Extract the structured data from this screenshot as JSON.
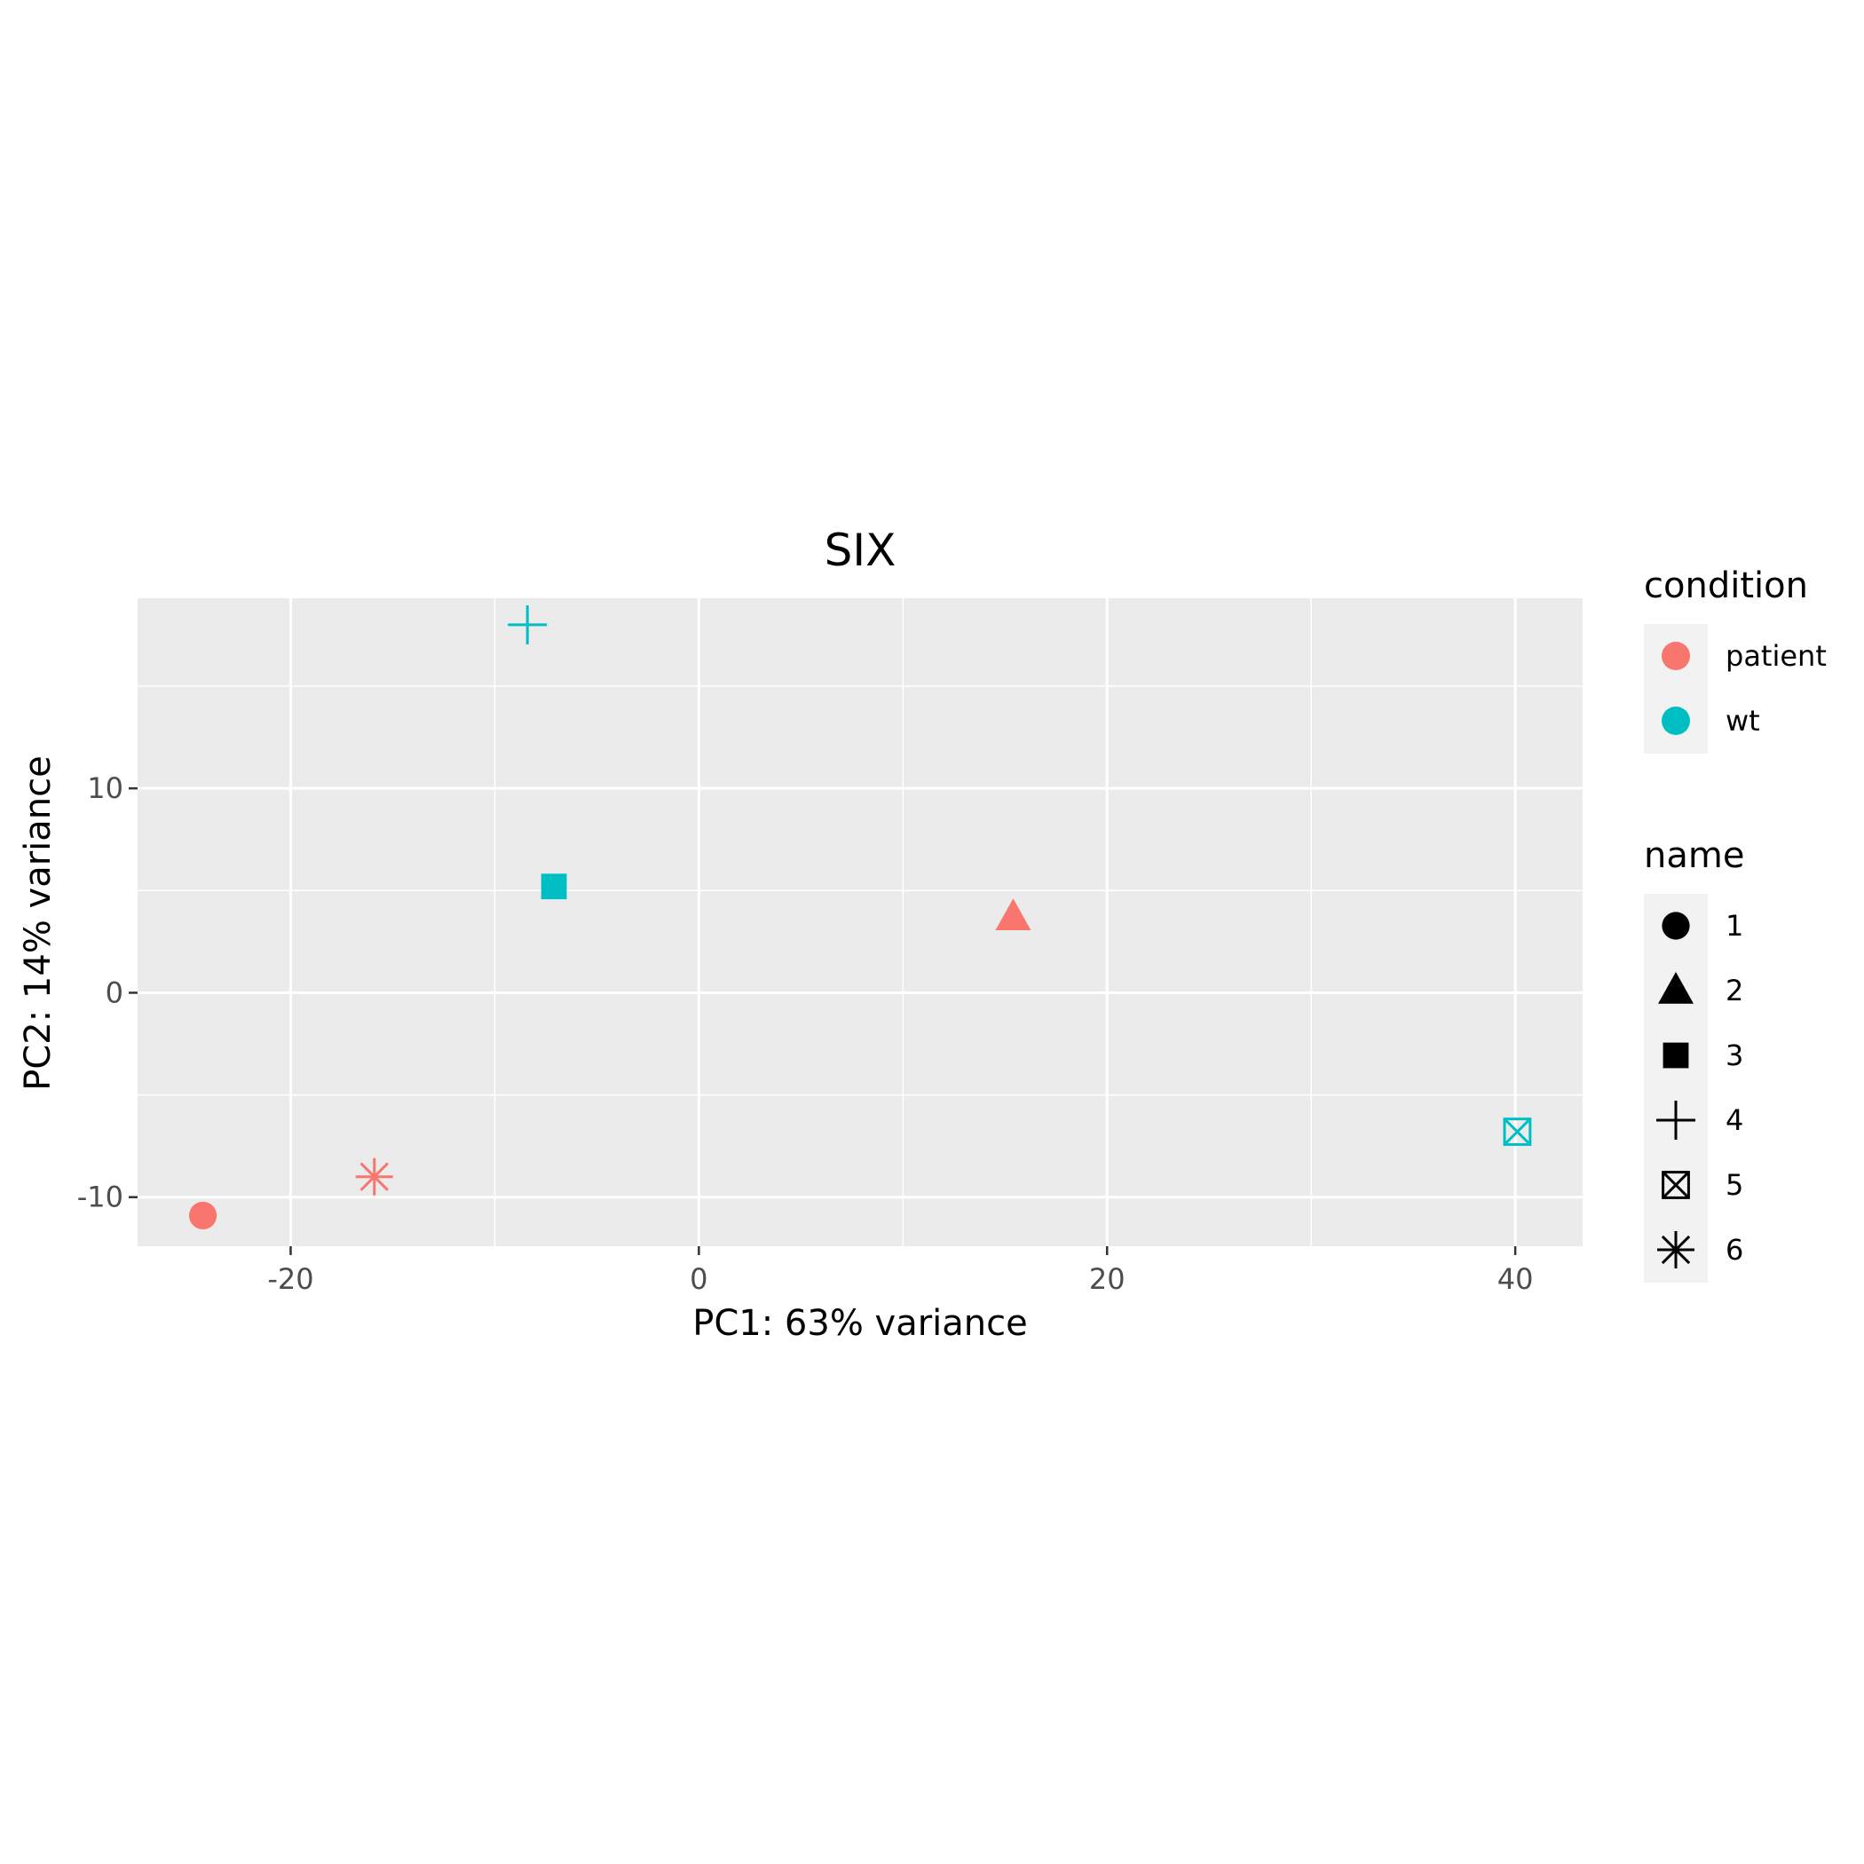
{
  "chart_data": {
    "type": "scatter",
    "title": "SIX",
    "xlabel": "PC1: 63% variance",
    "ylabel": "PC2: 14% variance",
    "xlim": [
      -27.5,
      43.3
    ],
    "ylim": [
      -12.4,
      19.3
    ],
    "x_ticks": [
      -20,
      0,
      20,
      40
    ],
    "y_ticks": [
      -10,
      0,
      10
    ],
    "grid": true,
    "colors": {
      "patient": "#F8766D",
      "wt": "#00BFC4"
    },
    "legend_position": "right",
    "legend_condition": {
      "title": "condition",
      "items": [
        {
          "label": "patient",
          "color": "#F8766D"
        },
        {
          "label": "wt",
          "color": "#00BFC4"
        }
      ]
    },
    "legend_name": {
      "title": "name",
      "items": [
        {
          "label": "1",
          "shape": "circle"
        },
        {
          "label": "2",
          "shape": "triangle"
        },
        {
          "label": "3",
          "shape": "square"
        },
        {
          "label": "4",
          "shape": "plus"
        },
        {
          "label": "5",
          "shape": "boxed-x"
        },
        {
          "label": "6",
          "shape": "asterisk"
        }
      ]
    },
    "points": [
      {
        "name": "1",
        "condition": "patient",
        "shape": "circle",
        "x": -24.3,
        "y": -10.9
      },
      {
        "name": "2",
        "condition": "patient",
        "shape": "triangle",
        "x": 15.4,
        "y": 3.7
      },
      {
        "name": "3",
        "condition": "wt",
        "shape": "square",
        "x": -7.1,
        "y": 5.2
      },
      {
        "name": "4",
        "condition": "wt",
        "shape": "plus",
        "x": -8.4,
        "y": 18.0
      },
      {
        "name": "5",
        "condition": "wt",
        "shape": "boxed-x",
        "x": 40.1,
        "y": -6.8
      },
      {
        "name": "6",
        "condition": "patient",
        "shape": "asterisk",
        "x": -15.9,
        "y": -9.0
      }
    ]
  }
}
